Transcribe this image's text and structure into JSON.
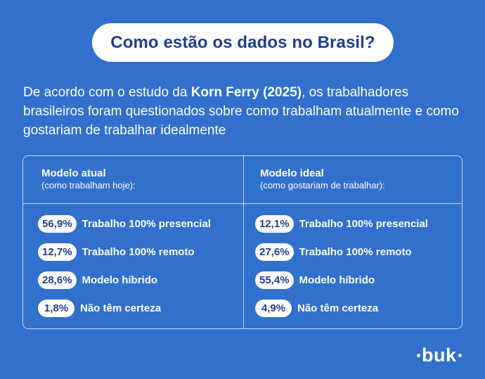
{
  "title": "Como estão os dados no Brasil?",
  "intro": {
    "before": "De acordo com o estudo da ",
    "bold": "Korn Ferry (2025)",
    "after": ", os trabalhadores brasileiros foram questionados sobre como trabalham atualmente e como gostariam de trabalhar idealmente"
  },
  "table": {
    "left": {
      "heading": "Modelo atual",
      "subheading": "(como trabalham hoje):",
      "rows": [
        {
          "value": "56,9%",
          "label": "Trabalho 100% presencial"
        },
        {
          "value": "12,7%",
          "label": "Trabalho 100% remoto"
        },
        {
          "value": "28,6%",
          "label": "Modelo híbrido"
        },
        {
          "value": "1,8%",
          "label": "Não têm certeza"
        }
      ]
    },
    "right": {
      "heading": "Modelo ideal",
      "subheading": "(como gostariam de trabalhar):",
      "rows": [
        {
          "value": "12,1%",
          "label": "Trabalho 100% presencial"
        },
        {
          "value": "27,6%",
          "label": "Trabalho 100% remoto"
        },
        {
          "value": "55,4%",
          "label": "Modelo híbrido"
        },
        {
          "value": "4,9%",
          "label": "Não têm certeza"
        }
      ]
    }
  },
  "logo": "buk",
  "colors": {
    "background": "#3170cc",
    "accent_text": "#1f3f8f"
  }
}
